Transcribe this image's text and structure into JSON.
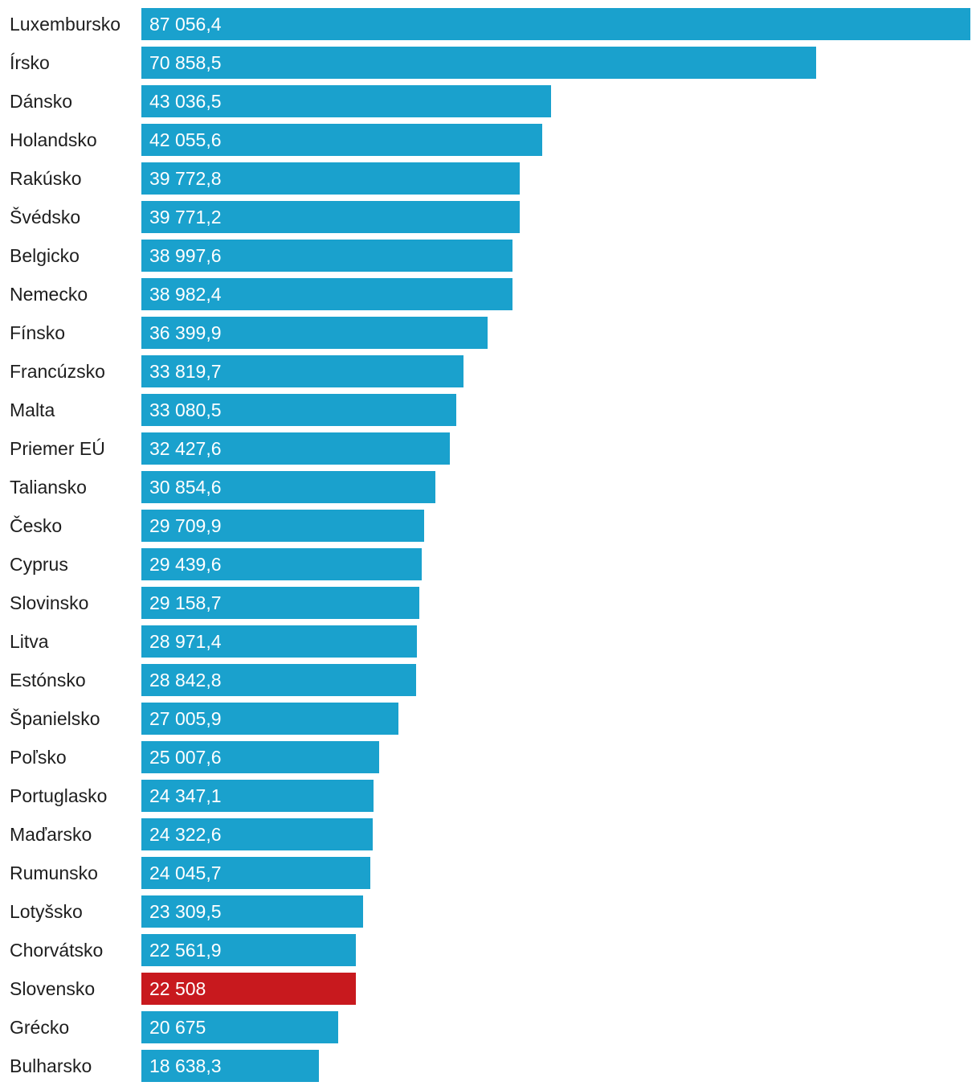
{
  "chart_data": {
    "type": "bar",
    "orientation": "horizontal",
    "title": "",
    "xlabel": "",
    "ylabel": "",
    "xlim": [
      0,
      87056.4
    ],
    "grid": false,
    "legend": "none",
    "bar_color": "#1aa1cd",
    "highlight_color": "#c8191e",
    "highlight_index": 25,
    "categories": [
      "Luxembursko",
      "Írsko",
      "Dánsko",
      "Holandsko",
      "Rakúsko",
      "Švédsko",
      "Belgicko",
      "Nemecko",
      "Fínsko",
      "Francúzsko",
      "Malta",
      "Priemer EÚ",
      "Taliansko",
      "Česko",
      "Cyprus",
      "Slovinsko",
      "Litva",
      "Estónsko",
      "Španielsko",
      "Poľsko",
      "Portuglasko",
      "Maďarsko",
      "Rumunsko",
      "Lotyšsko",
      "Chorvátsko",
      "Slovensko",
      "Grécko",
      "Bulharsko"
    ],
    "values": [
      87056.4,
      70858.5,
      43036.5,
      42055.6,
      39772.8,
      39771.2,
      38997.6,
      38982.4,
      36399.9,
      33819.7,
      33080.5,
      32427.6,
      30854.6,
      29709.9,
      29439.6,
      29158.7,
      28971.4,
      28842.8,
      27005.9,
      25007.6,
      24347.1,
      24322.6,
      24045.7,
      23309.5,
      22561.9,
      22508,
      20675,
      18638.3
    ],
    "value_labels": [
      "87 056,4",
      "70 858,5",
      "43 036,5",
      "42 055,6",
      "39 772,8",
      "39 771,2",
      "38 997,6",
      "38 982,4",
      "36 399,9",
      "33 819,7",
      "33 080,5",
      "32 427,6",
      "30 854,6",
      "29 709,9",
      "29 439,6",
      "29 158,7",
      "28 971,4",
      "28 842,8",
      "27 005,9",
      "25 007,6",
      "24 347,1",
      "24 322,6",
      "24 045,7",
      "23 309,5",
      "22 561,9",
      "22 508",
      "20 675",
      "18 638,3"
    ]
  }
}
